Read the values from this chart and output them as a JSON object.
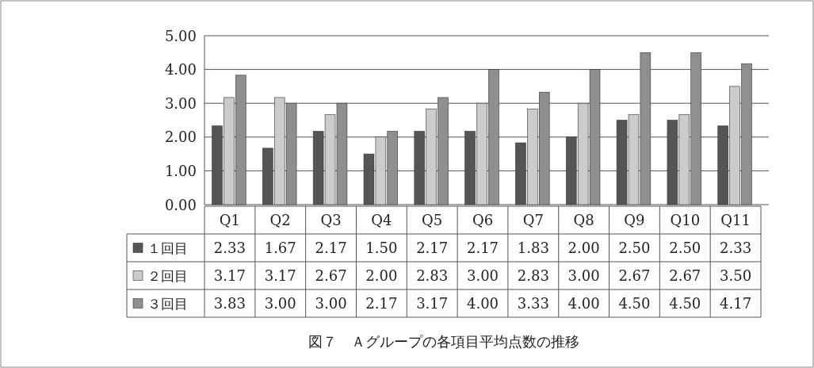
{
  "chart_data": {
    "type": "bar",
    "title": "図７　Ａグループの各項目平均点数の推移",
    "categories": [
      "Q1",
      "Q2",
      "Q3",
      "Q4",
      "Q5",
      "Q6",
      "Q7",
      "Q8",
      "Q9",
      "Q10",
      "Q11"
    ],
    "series": [
      {
        "name": "１回目",
        "color": "#555555",
        "values": [
          2.33,
          1.67,
          2.17,
          1.5,
          2.17,
          2.17,
          1.83,
          2.0,
          2.5,
          2.5,
          2.33
        ],
        "value_labels": [
          "2.33",
          "1.67",
          "2.17",
          "1.50",
          "2.17",
          "2.17",
          "1.83",
          "2.00",
          "2.50",
          "2.50",
          "2.33"
        ]
      },
      {
        "name": "２回目",
        "color": "#cccccc",
        "values": [
          3.17,
          3.17,
          2.67,
          2.0,
          2.83,
          3.0,
          2.83,
          3.0,
          2.67,
          2.67,
          3.5
        ],
        "value_labels": [
          "3.17",
          "3.17",
          "2.67",
          "2.00",
          "2.83",
          "3.00",
          "2.83",
          "3.00",
          "2.67",
          "2.67",
          "3.50"
        ]
      },
      {
        "name": "３回目",
        "color": "#8f8f8f",
        "values": [
          3.83,
          3.0,
          3.0,
          2.17,
          3.17,
          4.0,
          3.33,
          4.0,
          4.5,
          4.5,
          4.17
        ],
        "value_labels": [
          "3.83",
          "3.00",
          "3.00",
          "2.17",
          "3.17",
          "4.00",
          "3.33",
          "4.00",
          "4.50",
          "4.50",
          "4.17"
        ]
      }
    ],
    "ylim": [
      0,
      5
    ],
    "yticks": [
      {
        "value": 0,
        "label": "0.00"
      },
      {
        "value": 1,
        "label": "1.00"
      },
      {
        "value": 2,
        "label": "2.00"
      },
      {
        "value": 3,
        "label": "3.00"
      },
      {
        "value": 4,
        "label": "4.00"
      },
      {
        "value": 5,
        "label": "5.00"
      }
    ],
    "grid": "y",
    "legend": "bottom"
  }
}
